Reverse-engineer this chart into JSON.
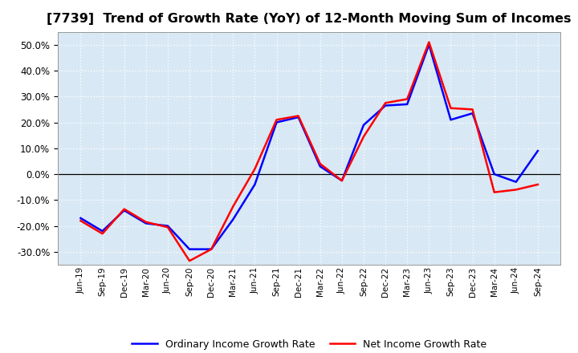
{
  "title": "[7739]  Trend of Growth Rate (YoY) of 12-Month Moving Sum of Incomes",
  "title_fontsize": 11.5,
  "ylim": [
    -0.35,
    0.55
  ],
  "yticks": [
    -0.3,
    -0.2,
    -0.1,
    0.0,
    0.1,
    0.2,
    0.3,
    0.4,
    0.5
  ],
  "background_color": "#FFFFFF",
  "plot_background": "#D8E8F4",
  "legend_labels": [
    "Ordinary Income Growth Rate",
    "Net Income Growth Rate"
  ],
  "x_labels": [
    "Jun-19",
    "Sep-19",
    "Dec-19",
    "Mar-20",
    "Jun-20",
    "Sep-20",
    "Dec-20",
    "Mar-21",
    "Jun-21",
    "Sep-21",
    "Dec-21",
    "Mar-22",
    "Jun-22",
    "Sep-22",
    "Dec-22",
    "Mar-23",
    "Jun-23",
    "Sep-23",
    "Dec-23",
    "Mar-24",
    "Jun-24",
    "Sep-24"
  ],
  "ordinary_income": [
    -0.17,
    -0.22,
    -0.14,
    -0.19,
    -0.2,
    -0.29,
    -0.29,
    -0.175,
    -0.04,
    0.2,
    0.22,
    0.03,
    -0.025,
    0.19,
    0.265,
    0.27,
    0.5,
    0.21,
    0.235,
    0.0,
    -0.03,
    0.09
  ],
  "net_income": [
    -0.18,
    -0.23,
    -0.135,
    -0.185,
    -0.205,
    -0.335,
    -0.29,
    -0.125,
    0.02,
    0.21,
    0.225,
    0.04,
    -0.025,
    0.145,
    0.275,
    0.29,
    0.51,
    0.255,
    0.25,
    -0.07,
    -0.06,
    -0.04
  ],
  "line_width": 1.8
}
